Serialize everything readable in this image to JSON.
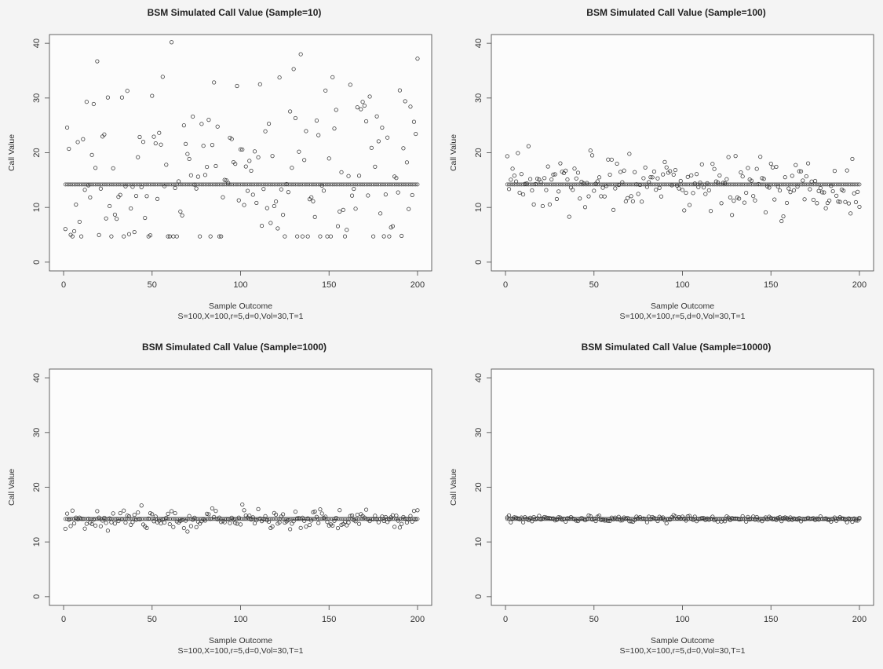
{
  "chart_data": [
    {
      "type": "scatter",
      "title": "BSM Simulated Call Value (Sample=10)",
      "xlabel": "Sample Outcome",
      "xlabel2": "S=100,X=100,r=5,d=0,Vol=30,T=1",
      "ylabel": "Call Value",
      "xlim": [
        0,
        200
      ],
      "ylim": [
        0,
        40
      ],
      "xticks": [
        "0",
        "50",
        "100",
        "150",
        "200"
      ],
      "yticks": [
        "0",
        "10",
        "20",
        "30",
        "40"
      ],
      "reference_line": 14.2,
      "spread": 8.5,
      "seed": 11,
      "highlights": [
        {
          "x": 2,
          "y": 24.6
        },
        {
          "x": 17,
          "y": 28.9
        },
        {
          "x": 25,
          "y": 30.1
        },
        {
          "x": 33,
          "y": 30.1
        },
        {
          "x": 50,
          "y": 30.4
        },
        {
          "x": 61,
          "y": 40.2
        },
        {
          "x": 98,
          "y": 32.2
        },
        {
          "x": 130,
          "y": 35.3
        },
        {
          "x": 152,
          "y": 33.8
        },
        {
          "x": 190,
          "y": 31.4
        },
        {
          "x": 200,
          "y": 37.2
        },
        {
          "x": 166,
          "y": 28.3
        },
        {
          "x": 49,
          "y": 4.9
        },
        {
          "x": 4,
          "y": 5.0
        },
        {
          "x": 191,
          "y": 4.8
        }
      ]
    },
    {
      "type": "scatter",
      "title": "BSM Simulated Call Value (Sample=100)",
      "xlabel": "Sample Outcome",
      "xlabel2": "S=100,X=100,r=5,d=0,Vol=30,T=1",
      "ylabel": "Call Value",
      "xlim": [
        0,
        200
      ],
      "ylim": [
        0,
        40
      ],
      "xticks": [
        "0",
        "50",
        "100",
        "150",
        "200"
      ],
      "yticks": [
        "0",
        "10",
        "20",
        "30",
        "40"
      ],
      "reference_line": 14.2,
      "spread": 2.6,
      "seed": 23,
      "highlights": [
        {
          "x": 13,
          "y": 21.2
        },
        {
          "x": 48,
          "y": 20.4
        },
        {
          "x": 126,
          "y": 19.2
        },
        {
          "x": 130,
          "y": 19.4
        },
        {
          "x": 36,
          "y": 8.3
        },
        {
          "x": 195,
          "y": 8.9
        },
        {
          "x": 200,
          "y": 10.1
        }
      ]
    },
    {
      "type": "scatter",
      "title": "BSM Simulated Call Value (Sample=1000)",
      "xlabel": "Sample Outcome",
      "xlabel2": "S=100,X=100,r=5,d=0,Vol=30,T=1",
      "ylabel": "Call Value",
      "xlim": [
        0,
        200
      ],
      "ylim": [
        0,
        40
      ],
      "xticks": [
        "0",
        "50",
        "100",
        "150",
        "200"
      ],
      "yticks": [
        "0",
        "10",
        "20",
        "30",
        "40"
      ],
      "reference_line": 14.2,
      "spread": 0.85,
      "seed": 37,
      "highlights": [
        {
          "x": 1,
          "y": 12.4
        },
        {
          "x": 110,
          "y": 16.0
        },
        {
          "x": 171,
          "y": 15.9
        },
        {
          "x": 200,
          "y": 15.8
        }
      ]
    },
    {
      "type": "scatter",
      "title": "BSM Simulated Call Value (Sample=10000)",
      "xlabel": "Sample Outcome",
      "xlabel2": "S=100,X=100,r=5,d=0,Vol=30,T=1",
      "ylabel": "Call Value",
      "xlim": [
        0,
        200
      ],
      "ylim": [
        0,
        40
      ],
      "xticks": [
        "0",
        "50",
        "100",
        "150",
        "200"
      ],
      "yticks": [
        "0",
        "10",
        "20",
        "30",
        "40"
      ],
      "reference_line": 14.2,
      "spread": 0.28,
      "seed": 53,
      "highlights": [
        {
          "x": 80,
          "y": 13.6
        },
        {
          "x": 95,
          "y": 14.9
        }
      ]
    }
  ]
}
